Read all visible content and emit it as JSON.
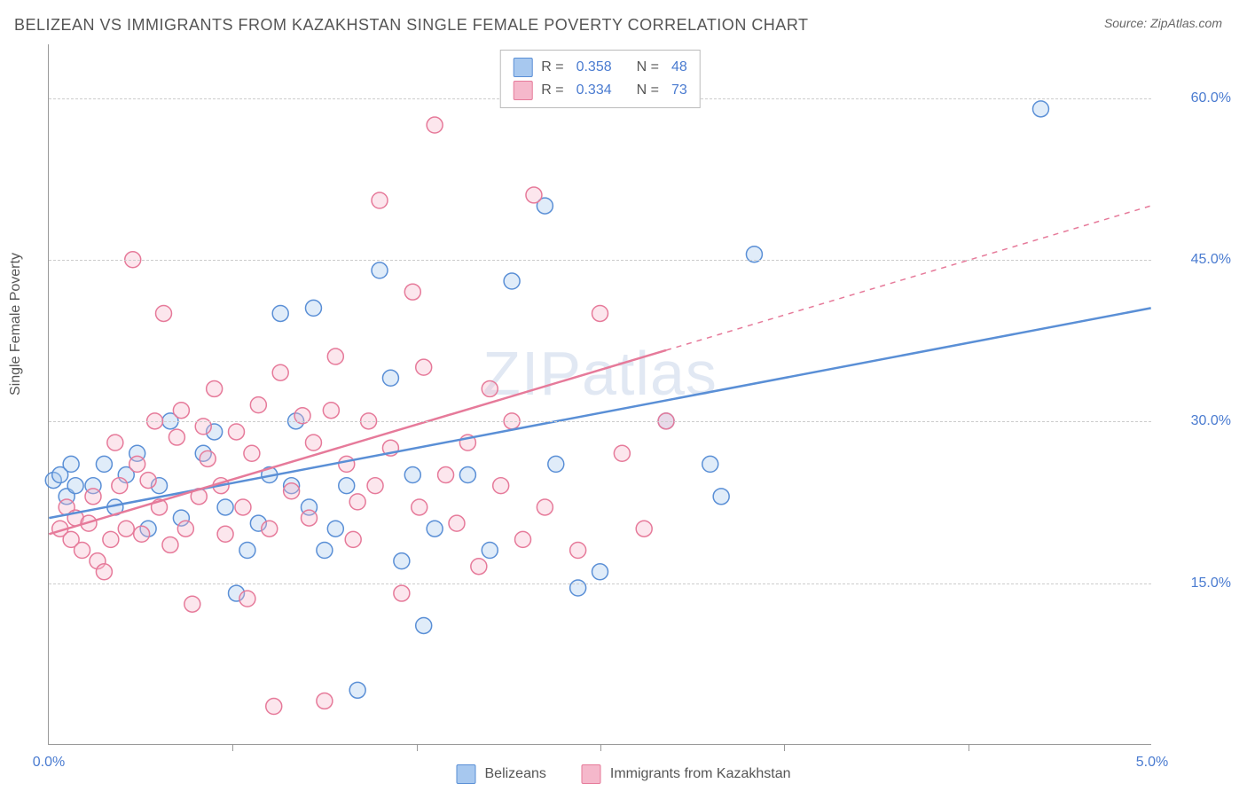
{
  "title": "BELIZEAN VS IMMIGRANTS FROM KAZAKHSTAN SINGLE FEMALE POVERTY CORRELATION CHART",
  "source_label": "Source: ",
  "source_name": "ZipAtlas.com",
  "y_axis_label": "Single Female Poverty",
  "watermark": "ZIPatlas",
  "chart": {
    "type": "scatter",
    "xlim": [
      0.0,
      5.0
    ],
    "ylim": [
      0.0,
      65.0
    ],
    "x_ticks": [
      0.0,
      5.0
    ],
    "x_tick_labels": [
      "0.0%",
      "5.0%"
    ],
    "x_minor_ticks": [
      0.83,
      1.67,
      2.5,
      3.33,
      4.17
    ],
    "y_gridlines": [
      15.0,
      30.0,
      45.0,
      60.0
    ],
    "y_tick_labels": [
      "15.0%",
      "30.0%",
      "45.0%",
      "60.0%"
    ],
    "background_color": "#ffffff",
    "grid_color": "#cccccc",
    "grid_dash": "4,4",
    "axis_color": "#999999",
    "marker_radius": 9,
    "marker_stroke_width": 1.5,
    "marker_fill_opacity": 0.35,
    "trend_line_width": 2.5,
    "title_fontsize": 18,
    "label_fontsize": 16,
    "tick_label_color": "#4a7bd0",
    "series": [
      {
        "name": "Belizeans",
        "color_stroke": "#5a8fd6",
        "color_fill": "#a7c8ef",
        "R": "0.358",
        "N": "48",
        "trend": {
          "x1": 0.0,
          "y1": 21.0,
          "x2": 5.0,
          "y2": 40.5,
          "solid_until_x": 5.0
        },
        "points": [
          [
            0.02,
            24.5
          ],
          [
            0.05,
            25.0
          ],
          [
            0.08,
            23.0
          ],
          [
            0.1,
            26.0
          ],
          [
            0.12,
            24.0
          ],
          [
            0.2,
            24.0
          ],
          [
            0.25,
            26.0
          ],
          [
            0.3,
            22.0
          ],
          [
            0.35,
            25.0
          ],
          [
            0.4,
            27.0
          ],
          [
            0.45,
            20.0
          ],
          [
            0.5,
            24.0
          ],
          [
            0.55,
            30.0
          ],
          [
            0.6,
            21.0
          ],
          [
            0.7,
            27.0
          ],
          [
            0.75,
            29.0
          ],
          [
            0.8,
            22.0
          ],
          [
            0.85,
            14.0
          ],
          [
            0.9,
            18.0
          ],
          [
            0.95,
            20.5
          ],
          [
            1.0,
            25.0
          ],
          [
            1.05,
            40.0
          ],
          [
            1.1,
            24.0
          ],
          [
            1.12,
            30.0
          ],
          [
            1.18,
            22.0
          ],
          [
            1.2,
            40.5
          ],
          [
            1.25,
            18.0
          ],
          [
            1.3,
            20.0
          ],
          [
            1.35,
            24.0
          ],
          [
            1.4,
            5.0
          ],
          [
            1.5,
            44.0
          ],
          [
            1.55,
            34.0
          ],
          [
            1.6,
            17.0
          ],
          [
            1.65,
            25.0
          ],
          [
            1.7,
            11.0
          ],
          [
            1.75,
            20.0
          ],
          [
            1.9,
            25.0
          ],
          [
            2.0,
            18.0
          ],
          [
            2.1,
            43.0
          ],
          [
            2.25,
            50.0
          ],
          [
            2.3,
            26.0
          ],
          [
            2.4,
            14.5
          ],
          [
            2.5,
            16.0
          ],
          [
            2.8,
            30.0
          ],
          [
            3.0,
            26.0
          ],
          [
            3.05,
            23.0
          ],
          [
            3.2,
            45.5
          ],
          [
            4.5,
            59.0
          ]
        ]
      },
      {
        "name": "Immigrants from Kazakhstan",
        "color_stroke": "#e67a9a",
        "color_fill": "#f5b8cb",
        "R": "0.334",
        "N": "73",
        "trend": {
          "x1": 0.0,
          "y1": 19.5,
          "x2": 5.0,
          "y2": 50.0,
          "solid_until_x": 2.8
        },
        "points": [
          [
            0.05,
            20.0
          ],
          [
            0.08,
            22.0
          ],
          [
            0.1,
            19.0
          ],
          [
            0.12,
            21.0
          ],
          [
            0.15,
            18.0
          ],
          [
            0.18,
            20.5
          ],
          [
            0.2,
            23.0
          ],
          [
            0.22,
            17.0
          ],
          [
            0.25,
            16.0
          ],
          [
            0.28,
            19.0
          ],
          [
            0.3,
            28.0
          ],
          [
            0.32,
            24.0
          ],
          [
            0.35,
            20.0
          ],
          [
            0.38,
            45.0
          ],
          [
            0.4,
            26.0
          ],
          [
            0.42,
            19.5
          ],
          [
            0.45,
            24.5
          ],
          [
            0.48,
            30.0
          ],
          [
            0.5,
            22.0
          ],
          [
            0.52,
            40.0
          ],
          [
            0.55,
            18.5
          ],
          [
            0.58,
            28.5
          ],
          [
            0.6,
            31.0
          ],
          [
            0.62,
            20.0
          ],
          [
            0.65,
            13.0
          ],
          [
            0.68,
            23.0
          ],
          [
            0.7,
            29.5
          ],
          [
            0.72,
            26.5
          ],
          [
            0.75,
            33.0
          ],
          [
            0.78,
            24.0
          ],
          [
            0.8,
            19.5
          ],
          [
            0.85,
            29.0
          ],
          [
            0.88,
            22.0
          ],
          [
            0.9,
            13.5
          ],
          [
            0.92,
            27.0
          ],
          [
            0.95,
            31.5
          ],
          [
            1.0,
            20.0
          ],
          [
            1.02,
            3.5
          ],
          [
            1.05,
            34.5
          ],
          [
            1.1,
            23.5
          ],
          [
            1.15,
            30.5
          ],
          [
            1.18,
            21.0
          ],
          [
            1.2,
            28.0
          ],
          [
            1.25,
            4.0
          ],
          [
            1.28,
            31.0
          ],
          [
            1.3,
            36.0
          ],
          [
            1.35,
            26.0
          ],
          [
            1.38,
            19.0
          ],
          [
            1.4,
            22.5
          ],
          [
            1.45,
            30.0
          ],
          [
            1.48,
            24.0
          ],
          [
            1.5,
            50.5
          ],
          [
            1.55,
            27.5
          ],
          [
            1.6,
            14.0
          ],
          [
            1.65,
            42.0
          ],
          [
            1.68,
            22.0
          ],
          [
            1.7,
            35.0
          ],
          [
            1.75,
            57.5
          ],
          [
            1.8,
            25.0
          ],
          [
            1.85,
            20.5
          ],
          [
            1.9,
            28.0
          ],
          [
            1.95,
            16.5
          ],
          [
            2.0,
            33.0
          ],
          [
            2.05,
            24.0
          ],
          [
            2.1,
            30.0
          ],
          [
            2.15,
            19.0
          ],
          [
            2.2,
            51.0
          ],
          [
            2.25,
            22.0
          ],
          [
            2.4,
            18.0
          ],
          [
            2.5,
            40.0
          ],
          [
            2.6,
            27.0
          ],
          [
            2.7,
            20.0
          ],
          [
            2.8,
            30.0
          ]
        ]
      }
    ]
  },
  "legend_bottom": {
    "items": [
      {
        "label": "Belizeans",
        "stroke": "#5a8fd6",
        "fill": "#a7c8ef"
      },
      {
        "label": "Immigrants from Kazakhstan",
        "stroke": "#e67a9a",
        "fill": "#f5b8cb"
      }
    ]
  }
}
